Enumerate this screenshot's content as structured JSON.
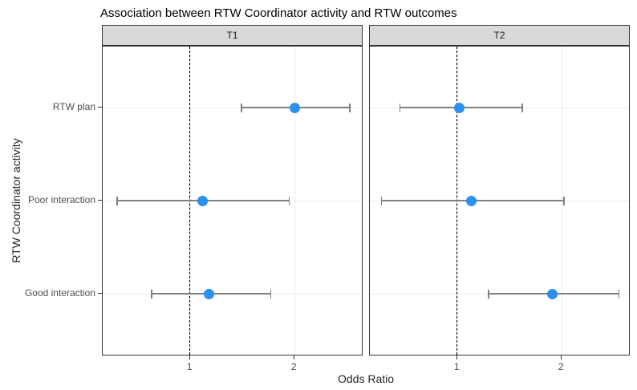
{
  "chart_data": {
    "type": "scatter",
    "subtype": "forest-plot-dot-whisker",
    "title": "Association between RTW Coordinator activity and RTW outcomes",
    "xlabel": "Odds Ratio",
    "ylabel": "RTW Coordinator activity",
    "categories": [
      "RTW plan",
      "Poor interaction",
      "Good interaction"
    ],
    "x_ticks": [
      1,
      2
    ],
    "xlim": [
      0.16,
      2.66
    ],
    "reference_line_x": 1,
    "grid": "major-only",
    "legend": "none",
    "facets": [
      {
        "label": "T1",
        "points": [
          {
            "category": "RTW plan",
            "odds_ratio": 2.0,
            "ci_low": 1.49,
            "ci_high": 2.53
          },
          {
            "category": "Poor interaction",
            "odds_ratio": 1.12,
            "ci_low": 0.3,
            "ci_high": 1.95
          },
          {
            "category": "Good interaction",
            "odds_ratio": 1.18,
            "ci_low": 0.63,
            "ci_high": 1.77
          }
        ]
      },
      {
        "label": "T2",
        "points": [
          {
            "category": "RTW plan",
            "odds_ratio": 1.02,
            "ci_low": 0.45,
            "ci_high": 1.62
          },
          {
            "category": "Poor interaction",
            "odds_ratio": 1.13,
            "ci_low": 0.27,
            "ci_high": 2.02
          },
          {
            "category": "Good interaction",
            "odds_ratio": 1.91,
            "ci_low": 1.3,
            "ci_high": 2.55
          }
        ]
      }
    ],
    "colors": {
      "point": "#2b90f0",
      "errorbar": "#7f7f7f",
      "reference_line": "#000000",
      "gridline": "#ebebeb",
      "strip_background": "#d9d9d9",
      "panel_border": "#333333",
      "title_text": "#000000",
      "axis_title_text": "#262626",
      "tick_text": "#4d4d4d"
    }
  }
}
